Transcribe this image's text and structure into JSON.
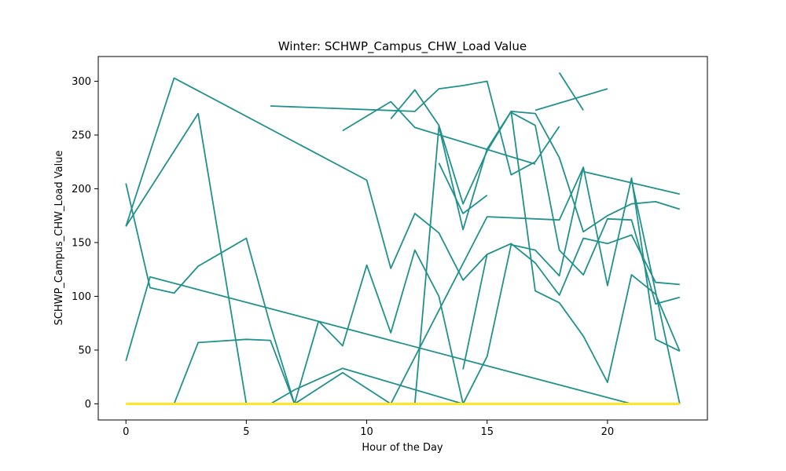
{
  "chart_data": {
    "type": "line",
    "title": "Winter: SCHWP_Campus_CHW_Load Value",
    "xlabel": "Hour of the Day",
    "ylabel": "SCHWP_Campus_CHW_Load Value",
    "xlim": [
      -1.15,
      24.15
    ],
    "ylim": [
      -15,
      323
    ],
    "xticks": [
      0,
      5,
      10,
      15,
      20
    ],
    "yticks": [
      0,
      50,
      100,
      150,
      200,
      250,
      300
    ],
    "grid": false,
    "legend": "none",
    "colors": {
      "teal": "#21918c",
      "yellow": "#fde725"
    },
    "series": [
      {
        "color": "teal",
        "x": [
          0,
          1,
          2,
          3,
          4,
          5,
          6,
          7
        ],
        "y": [
          205,
          108,
          103,
          128,
          141,
          154,
          73,
          0
        ]
      },
      {
        "color": "teal",
        "x": [
          0,
          3,
          5
        ],
        "y": [
          165,
          270,
          0
        ]
      },
      {
        "color": "teal",
        "x": [
          0,
          2,
          10,
          11,
          12,
          13,
          14,
          15
        ],
        "y": [
          165,
          303,
          208,
          126,
          177,
          159,
          115,
          139
        ]
      },
      {
        "color": "teal",
        "x": [
          0,
          1,
          21
        ],
        "y": [
          40,
          118,
          0
        ]
      },
      {
        "color": "teal",
        "x": [
          2,
          3,
          5,
          6,
          7,
          8
        ],
        "y": [
          0,
          57,
          60,
          59,
          0,
          77
        ]
      },
      {
        "color": "teal",
        "x": [
          6,
          12,
          13,
          14,
          15,
          16,
          17,
          18
        ],
        "y": [
          277,
          272,
          293,
          296,
          300,
          213,
          225,
          258
        ]
      },
      {
        "color": "teal",
        "x": [
          8,
          9,
          10,
          11,
          12,
          13,
          14
        ],
        "y": [
          77,
          54,
          129,
          66,
          143,
          100,
          0
        ]
      },
      {
        "color": "teal",
        "x": [
          9,
          11,
          12,
          17
        ],
        "y": [
          254,
          281,
          257,
          223
        ]
      },
      {
        "color": "teal",
        "x": [
          11,
          12,
          13,
          14,
          15,
          16,
          17,
          18,
          19,
          20,
          21,
          22,
          23
        ],
        "y": [
          265,
          292,
          259,
          186,
          235,
          272,
          270,
          229,
          160,
          175,
          186,
          188,
          181
        ]
      },
      {
        "color": "teal",
        "x": [
          6,
          7,
          9,
          14,
          15,
          16,
          17,
          18,
          19
        ],
        "y": [
          0,
          13,
          33,
          0,
          44,
          148,
          143,
          119,
          220
        ]
      },
      {
        "color": "teal",
        "x": [
          10,
          12,
          13,
          14,
          15,
          16,
          17,
          18,
          19,
          20,
          21,
          22,
          23
        ],
        "y": [
          0,
          0,
          258,
          162,
          237,
          272,
          105,
          94,
          63,
          20,
          120,
          102,
          49
        ]
      },
      {
        "color": "teal",
        "x": [
          7,
          9,
          11,
          15,
          18,
          19,
          20,
          21,
          22,
          23
        ],
        "y": [
          0,
          29,
          0,
          174,
          171,
          220,
          110,
          210,
          60,
          49
        ]
      },
      {
        "color": "teal",
        "x": [
          13,
          14,
          15
        ],
        "y": [
          224,
          177,
          194
        ]
      },
      {
        "color": "teal",
        "x": [
          14,
          15,
          16,
          17,
          18,
          19,
          20,
          21,
          22,
          23
        ],
        "y": [
          32,
          139,
          149,
          131,
          101,
          154,
          149,
          157,
          113,
          111
        ]
      },
      {
        "color": "teal",
        "x": [
          16,
          17,
          18,
          19,
          20,
          21,
          22,
          23
        ],
        "y": [
          271,
          259,
          143,
          120,
          172,
          171,
          93,
          99
        ]
      },
      {
        "color": "teal",
        "x": [
          17,
          20
        ],
        "y": [
          273,
          293
        ]
      },
      {
        "color": "teal",
        "x": [
          18,
          19
        ],
        "y": [
          308,
          273
        ]
      },
      {
        "color": "teal",
        "x": [
          19,
          23
        ],
        "y": [
          216,
          195
        ]
      },
      {
        "color": "teal",
        "x": [
          21,
          23
        ],
        "y": [
          208,
          0
        ]
      },
      {
        "color": "yellow",
        "x": [
          0,
          23
        ],
        "y": [
          0,
          0
        ]
      }
    ]
  }
}
